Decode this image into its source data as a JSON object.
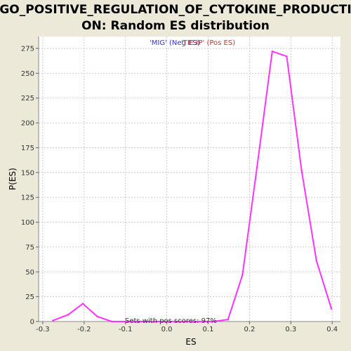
{
  "chart_data": {
    "type": "line",
    "title_line1": "GO_POSITIVE_REGULATION_OF_CYTOKINE_PRODUCTI",
    "title_line2": "ON: Random ES distribution",
    "xlabel": "ES",
    "ylabel": "P(ES)",
    "xlim": [
      -0.31,
      0.42
    ],
    "ylim": [
      0,
      287
    ],
    "xticks": [
      -0.3,
      -0.2,
      -0.1,
      0.0,
      0.1,
      0.2,
      0.3,
      0.4
    ],
    "xtick_labels": [
      "-0.3",
      "-0.2",
      "-0.1",
      "0.0",
      "0.1",
      "0.2",
      "0.3",
      "0.4"
    ],
    "yticks": [
      0,
      25,
      50,
      75,
      100,
      125,
      150,
      175,
      200,
      225,
      250,
      275
    ],
    "ytick_labels": [
      "0",
      "25",
      "50",
      "75",
      "100",
      "125",
      "150",
      "175",
      "200",
      "225",
      "250",
      "275"
    ],
    "grid": true,
    "series": [
      {
        "color": "#ff33ff",
        "x": [
          -0.275,
          -0.238,
          -0.203,
          -0.168,
          -0.133,
          -0.098,
          -0.063,
          -0.028,
          0.008,
          0.043,
          0.078,
          0.113,
          0.148,
          0.183,
          0.218,
          0.255,
          0.29,
          0.326,
          0.362,
          0.398
        ],
        "y": [
          1,
          7,
          18,
          5,
          0,
          0,
          0,
          0,
          0,
          0,
          0,
          0,
          2,
          47,
          155,
          272,
          267,
          152,
          61,
          13
        ]
      }
    ],
    "annotations": {
      "neg_label": "'MIG' (Neg ES)",
      "pos_label": "'TIE3P' (Pos ES)",
      "pos_scores_text": "Sets with pos scores: 97%"
    },
    "colors": {
      "neg_label": "#3333cc",
      "pos_label": "#cc3333",
      "line": "#ff33ff",
      "grid": "#cccccc",
      "plot_bg": "#ffffff",
      "page_bg": "#ece9d8"
    }
  }
}
